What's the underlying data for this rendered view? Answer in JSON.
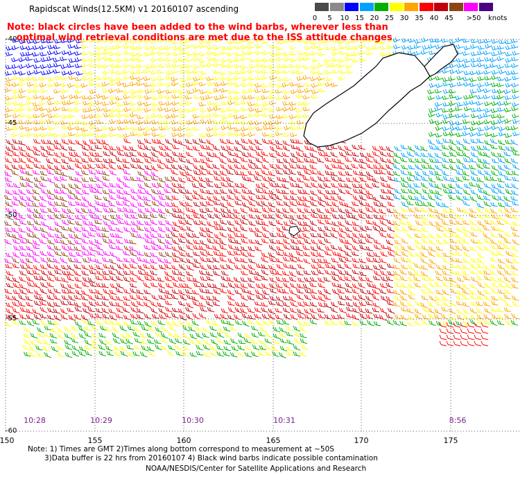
{
  "title": "Rapidscat Winds(12.5KM) v1 20160107 ascending",
  "note_red": [
    "Note: black circles have been added to the wind barbs, wherever less than",
    "   optimal wind retrieval conditions are met due to the ISS attitude changes"
  ],
  "colorbar": {
    "labels": [
      "0",
      "5",
      "10",
      "15",
      "20",
      "25",
      "30",
      "35",
      "40",
      "45",
      ">50"
    ],
    "colors": [
      "#4a4a4a",
      "#8a8a8a",
      "#0000ff",
      "#00a0ff",
      "#00b000",
      "#ffff00",
      "#ffa500",
      "#ff0000",
      "#c0000b",
      "#8b4513",
      "#ff00ff",
      "#4b0082"
    ],
    "units": "knots"
  },
  "latitudes": [
    "-40",
    "-45",
    "-50",
    "-55",
    "-60"
  ],
  "longitudes": [
    "150",
    "155",
    "160",
    "165",
    "170",
    "175"
  ],
  "times": [
    "10:28",
    "10:29",
    "10:30",
    "10:31",
    "8:56"
  ],
  "footnote_line1": "Note: 1) Times are GMT 2)Times along bottom correspond to measurement at ~50S",
  "footnote_line2": "3)Data buffer is 22 hrs from 20160107 4) Black wind barbs indicate possible contamination",
  "credit": "NOAA/NESDIS/Center for Satellite Applications and Research"
}
